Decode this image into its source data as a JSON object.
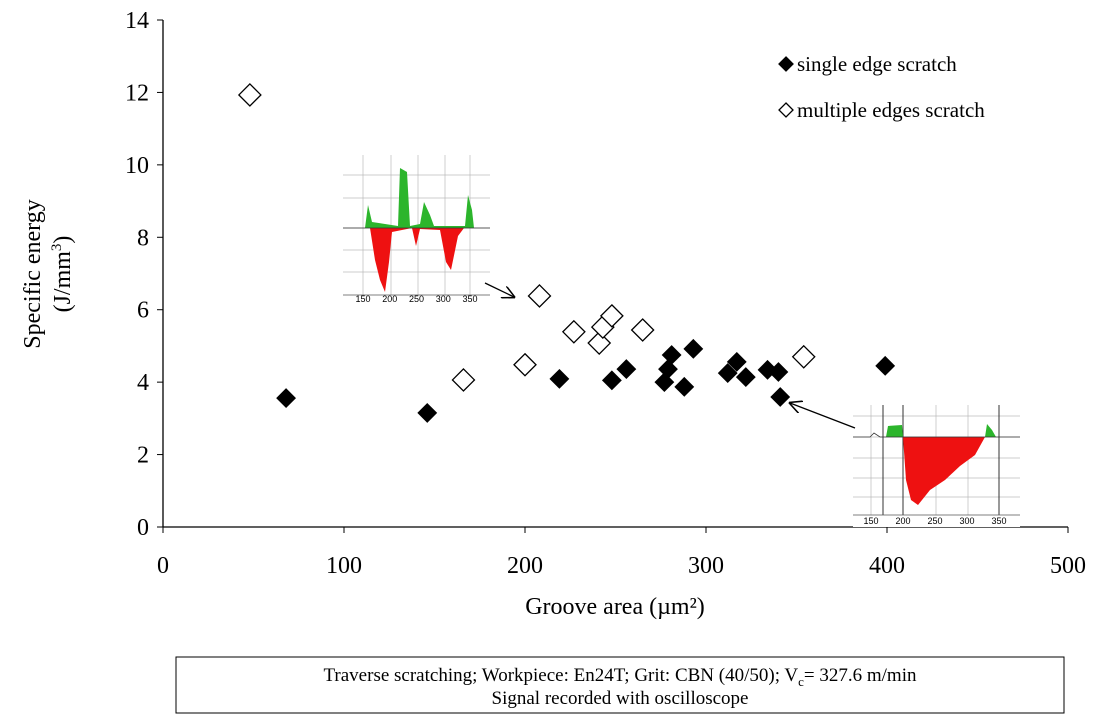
{
  "chart_data": {
    "type": "scatter",
    "xlabel": "Groove area (µm²)",
    "ylabel": {
      "line1": "Specific  energy",
      "line2_start": "(J/mm",
      "line2_sup": "3",
      "line2_end": ")"
    },
    "xlim": [
      0,
      500
    ],
    "xticks": [
      0,
      100,
      200,
      300,
      400,
      500
    ],
    "ylim": [
      0,
      14
    ],
    "yticks": [
      0,
      2,
      4,
      6,
      8,
      10,
      12,
      14
    ],
    "legend": "upper right",
    "series": [
      {
        "name": "single edge scratch",
        "marker": "filled",
        "color": "#000000",
        "x": [
          68,
          146,
          219,
          248,
          256,
          277,
          279,
          281,
          288,
          293,
          312,
          317,
          322,
          334,
          340,
          341,
          399
        ],
        "values": [
          3.56,
          3.15,
          4.09,
          4.05,
          4.36,
          4.0,
          4.36,
          4.75,
          3.87,
          4.92,
          4.25,
          4.56,
          4.14,
          4.34,
          4.28,
          3.59,
          4.45
        ]
      },
      {
        "name": "multiple edges scratch",
        "marker": "open",
        "color": "#000000",
        "x": [
          48,
          166,
          200,
          208,
          227,
          241,
          243,
          248,
          265,
          354
        ],
        "values": [
          11.93,
          4.06,
          4.48,
          6.38,
          5.39,
          5.08,
          5.52,
          5.83,
          5.44,
          4.7
        ]
      }
    ],
    "insets": [
      {
        "tick_labels": [
          150,
          200,
          250,
          300,
          350
        ]
      },
      {
        "tick_labels": [
          150,
          200,
          250,
          300,
          350
        ]
      }
    ],
    "note": {
      "line1_start": "Traverse scratching; Workpiece: En24T; Grit: CBN (40/50); V",
      "line1_sub": "c",
      "line1_end": "= 327.6 m/min",
      "line2": "Signal recorded with oscilloscope"
    }
  }
}
